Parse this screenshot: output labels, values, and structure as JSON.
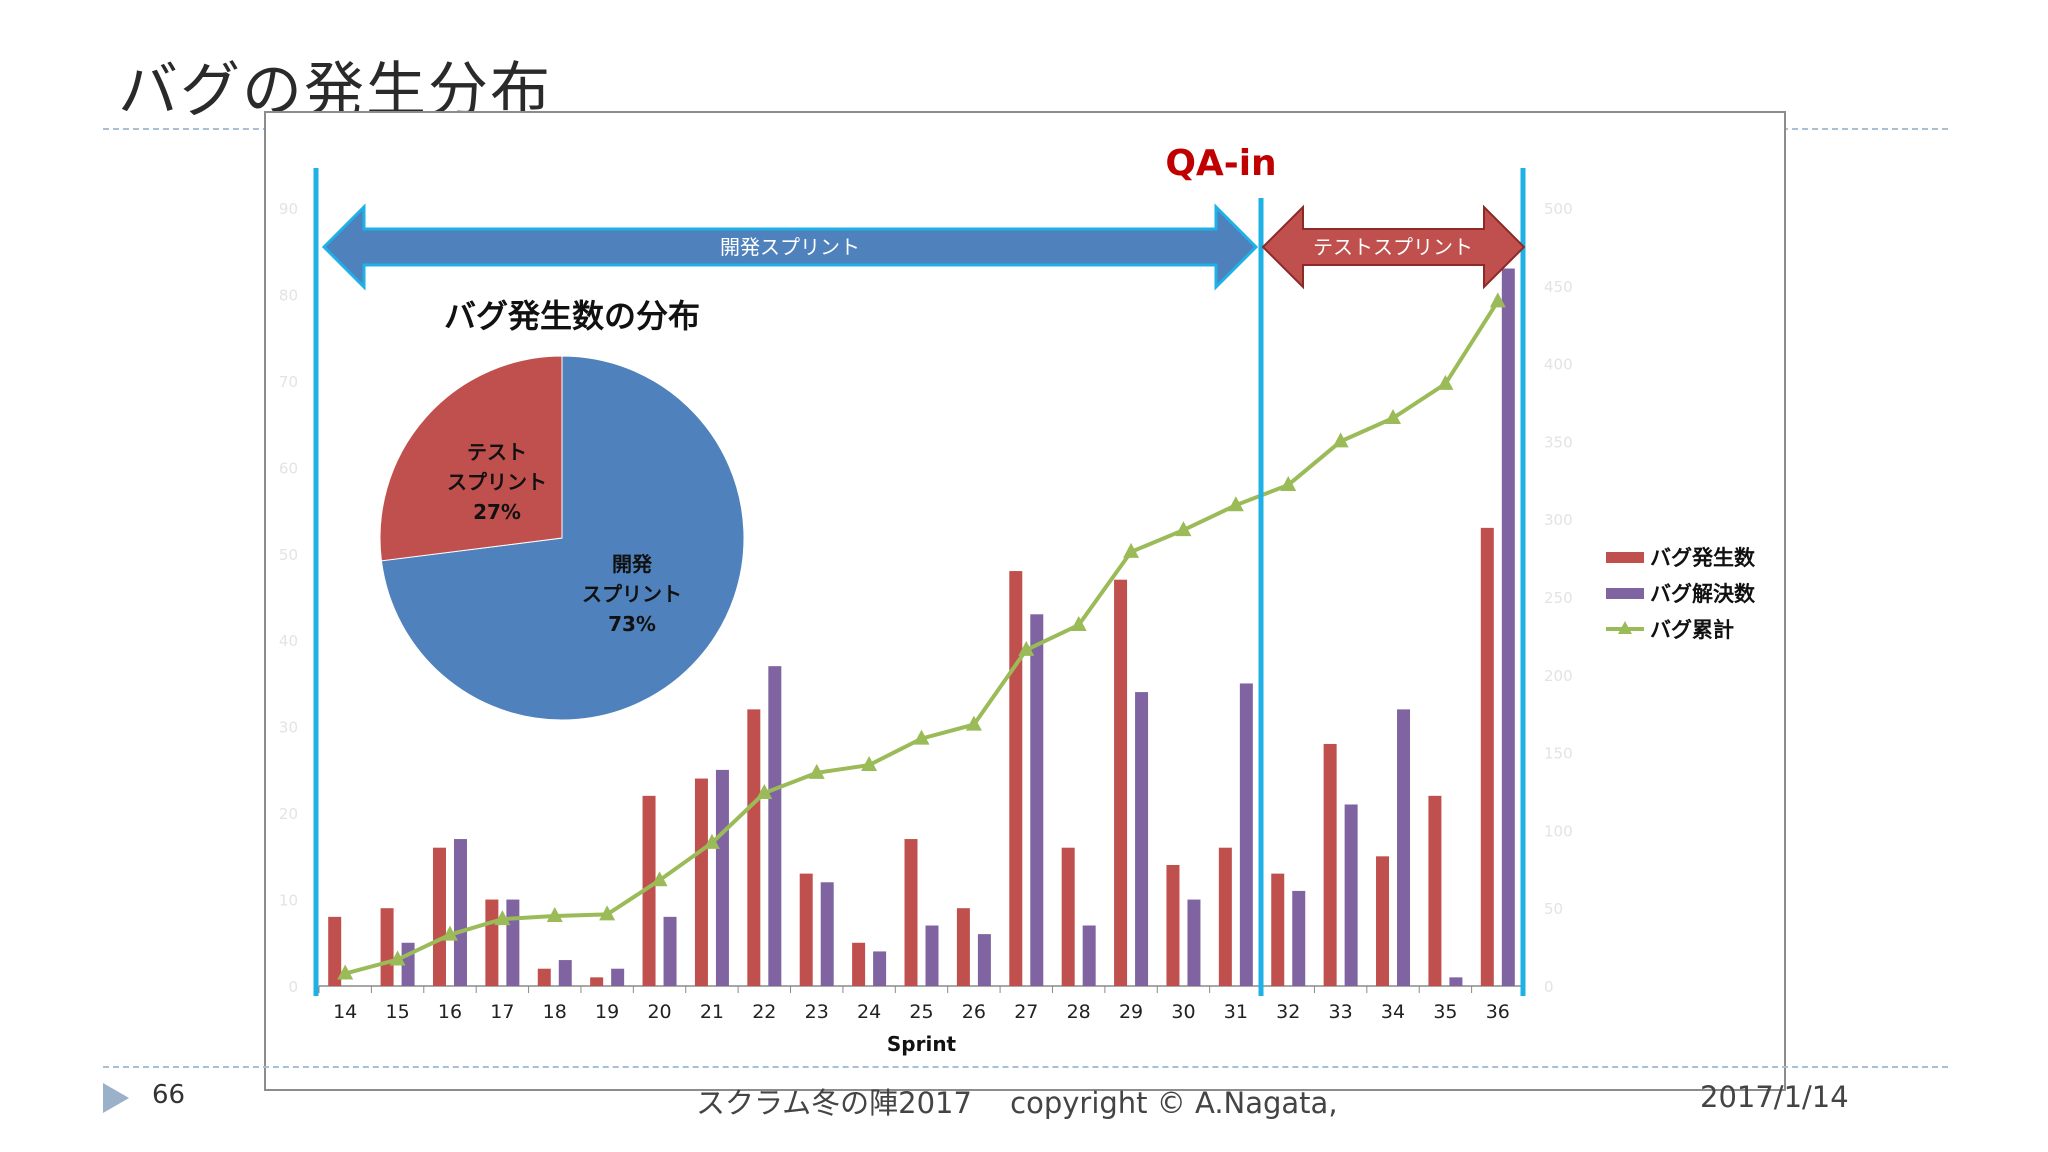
{
  "slide": {
    "title": "バグの発生分布",
    "page_number": "66",
    "footer": "スクラム冬の陣2017　 copyright © A.Nagata,",
    "date": "2017/1/14"
  },
  "colors": {
    "occurred": "#c0504d",
    "resolved": "#8064a2",
    "cumulative": "#9bbb59",
    "pie_dev": "#4f81bd",
    "pie_test": "#c0504d",
    "dev_arrow": "#4f81bd",
    "test_arrow": "#c0504d",
    "divider": "#1fb1e6",
    "qa_text": "#c00000"
  },
  "annotations": {
    "qa_in": "QA-in",
    "dev_arrow_label": "開発スプリント",
    "test_arrow_label": "テストスプリント"
  },
  "chart_data": {
    "type": "bar",
    "xlabel": "Sprint",
    "categories": [
      "14",
      "15",
      "16",
      "17",
      "18",
      "19",
      "20",
      "21",
      "22",
      "23",
      "24",
      "25",
      "26",
      "27",
      "28",
      "29",
      "30",
      "31",
      "32",
      "33",
      "34",
      "35",
      "36"
    ],
    "y_left": {
      "min": 0,
      "max": 90,
      "ticks": [
        "0",
        "10",
        "20",
        "30",
        "40",
        "50",
        "60",
        "70",
        "80",
        "90"
      ]
    },
    "y_right": {
      "min": 0,
      "max": 500,
      "ticks": [
        "0",
        "50",
        "100",
        "150",
        "200",
        "250",
        "300",
        "350",
        "400",
        "450",
        "500"
      ]
    },
    "series": [
      {
        "name": "バグ発生数",
        "type": "bar",
        "axis": "left",
        "values": [
          8,
          9,
          16,
          10,
          2,
          1,
          22,
          24,
          32,
          13,
          5,
          17,
          9,
          48,
          16,
          47,
          14,
          16,
          13,
          28,
          15,
          22,
          53
        ]
      },
      {
        "name": "バグ解決数",
        "type": "bar",
        "axis": "left",
        "values": [
          0,
          5,
          17,
          10,
          3,
          2,
          8,
          25,
          37,
          12,
          4,
          7,
          6,
          43,
          7,
          34,
          10,
          35,
          11,
          21,
          32,
          1,
          83
        ]
      },
      {
        "name": "バグ累計",
        "type": "line",
        "axis": "right",
        "values": [
          8,
          17,
          33,
          43,
          45,
          46,
          68,
          92,
          124,
          137,
          142,
          159,
          168,
          216,
          232,
          279,
          293,
          309,
          322,
          350,
          365,
          387,
          440
        ]
      }
    ],
    "legend_position": "right",
    "inset_pie": {
      "title": "バグ発生数の分布",
      "slices": [
        {
          "label_lines": [
            "開発",
            "スプリント",
            "73%"
          ],
          "value": 73
        },
        {
          "label_lines": [
            "テスト",
            "スプリント",
            "27%"
          ],
          "value": 27
        }
      ]
    }
  }
}
